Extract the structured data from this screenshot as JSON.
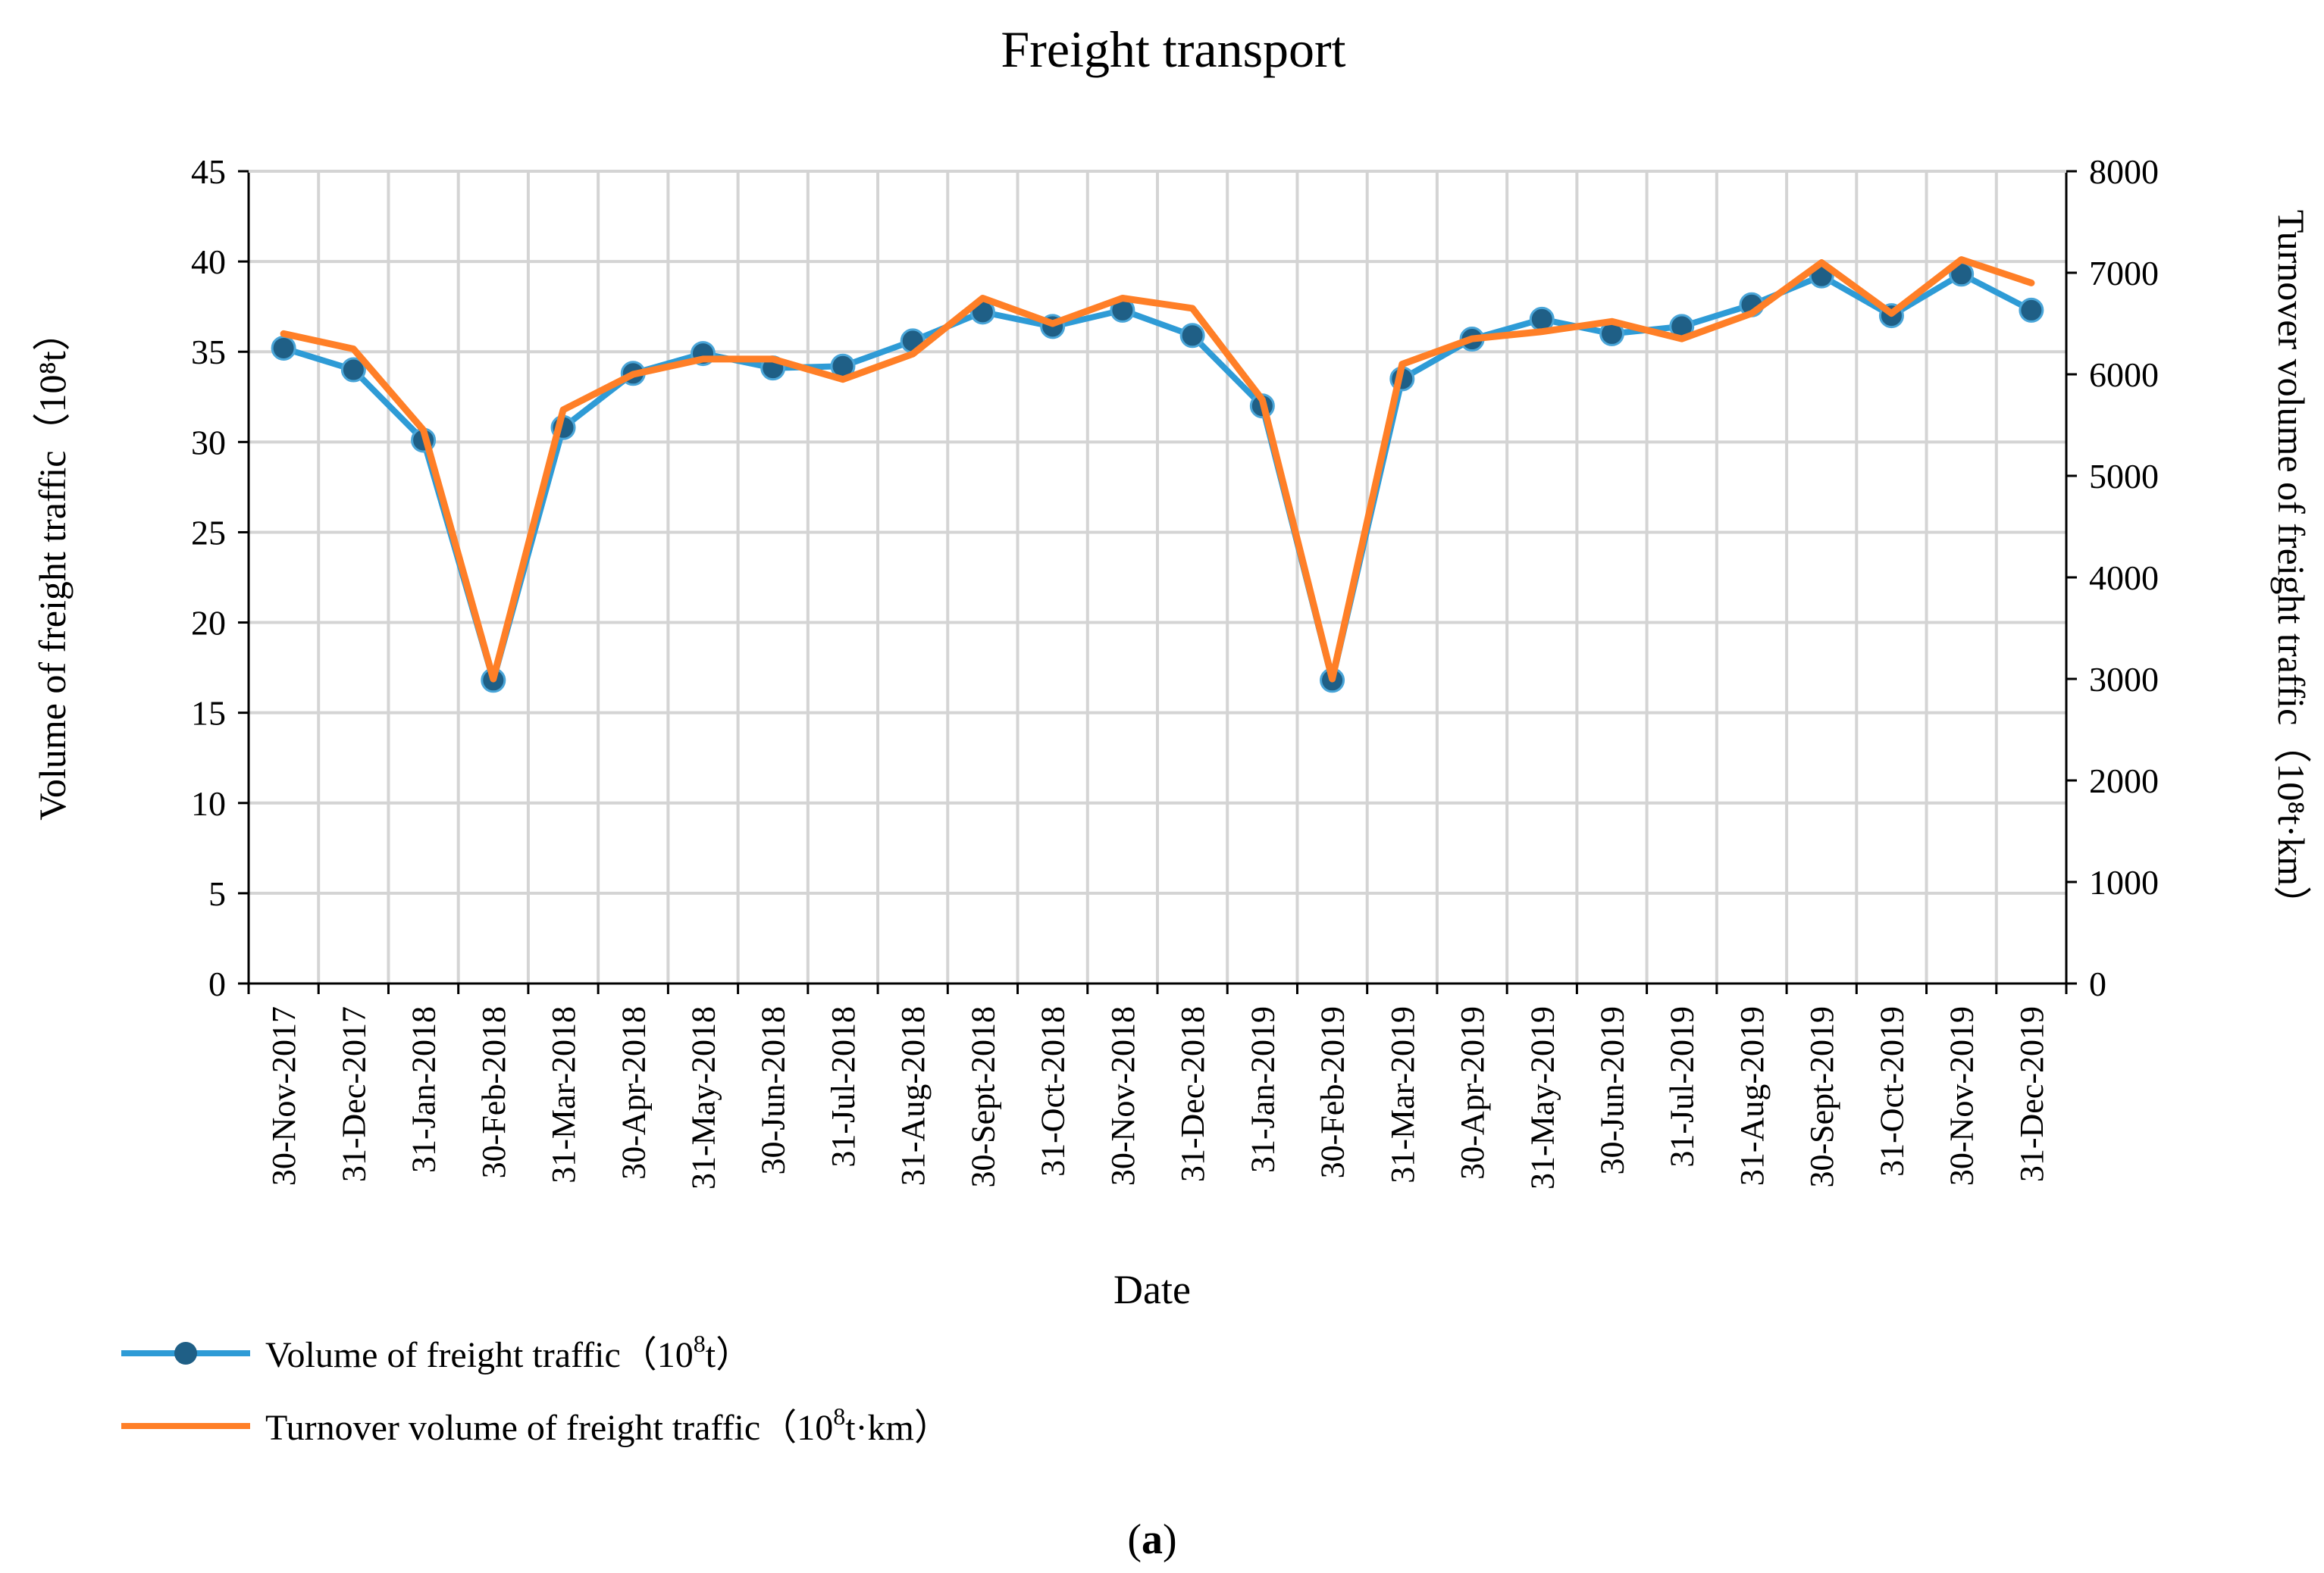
{
  "chart_data": {
    "type": "line",
    "title": "Freight transport",
    "xlabel": "Date",
    "ylabel_left": "Volume of freight traffic（10⁸t）",
    "ylabel_right": "Turnover volume of freight traffic（10⁸t·km）",
    "caption_open": "(",
    "caption_letter": "a",
    "caption_close": ")",
    "y_left": {
      "min": 0,
      "max": 45,
      "step": 5
    },
    "y_right": {
      "min": 0,
      "max": 8000,
      "step": 1000
    },
    "grid": true,
    "legend_position": "bottom-left",
    "categories": [
      "30-Nov-2017",
      "31-Dec-2017",
      "31-Jan-2018",
      "30-Feb-2018",
      "31-Mar-2018",
      "30-Apr-2018",
      "31-May-2018",
      "30-Jun-2018",
      "31-Jul-2018",
      "31-Aug-2018",
      "30-Sept-2018",
      "31-Oct-2018",
      "30-Nov-2018",
      "31-Dec-2018",
      "31-Jan-2019",
      "30-Feb-2019",
      "31-Mar-2019",
      "30-Apr-2019",
      "31-May-2019",
      "30-Jun-2019",
      "31-Jul-2019",
      "31-Aug-2019",
      "30-Sept-2019",
      "31-Oct-2019",
      "30-Nov-2019",
      "31-Dec-2019"
    ],
    "series": [
      {
        "name": "Volume of freight traffic（10⁸t）",
        "axis": "left",
        "color": "#2e9bd6",
        "marker_color": "#1f5f86",
        "values": [
          35.2,
          34.0,
          30.1,
          16.8,
          30.8,
          33.8,
          34.9,
          34.1,
          34.2,
          35.6,
          37.2,
          36.4,
          37.3,
          35.9,
          32.0,
          16.8,
          33.5,
          35.7,
          36.8,
          36.0,
          36.4,
          37.6,
          39.2,
          37.0,
          39.3,
          37.3
        ]
      },
      {
        "name": "Turnover volume of freight traffic（10⁸t·km）",
        "axis": "right",
        "color": "#ff7f27",
        "values": [
          6400,
          6250,
          5450,
          3000,
          5650,
          6000,
          6150,
          6150,
          5950,
          6200,
          6750,
          6500,
          6750,
          6650,
          5750,
          3000,
          6100,
          6350,
          6420,
          6520,
          6350,
          6600,
          7100,
          6600,
          7130,
          6900
        ]
      }
    ],
    "legend": [
      {
        "label_main": "Volume of freight traffic",
        "unit_open": "（",
        "unit_base": "10",
        "unit_exp": "8",
        "unit_rest": "t）"
      },
      {
        "label_main": "Turnover volume of freight traffic",
        "unit_open": "（",
        "unit_base": "10",
        "unit_exp": "8",
        "unit_rest": "t·km）"
      }
    ]
  }
}
